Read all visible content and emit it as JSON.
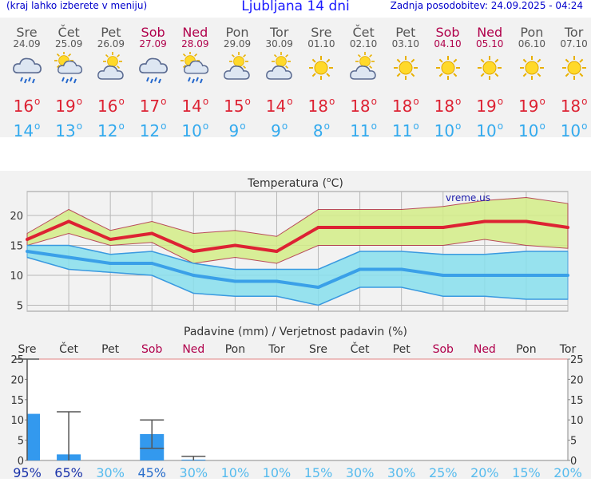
{
  "header": {
    "menu_hint": "(kraj lahko izberete v meniju)",
    "title": "Ljubljana 14 dni",
    "last_update": "Zadnja posodobitev: 24.09.2025 - 04:24"
  },
  "days": [
    {
      "name": "Sre",
      "date": "24.09",
      "weekend": false,
      "icon": "rain-cloud-icon",
      "tmax": "16",
      "tmin": "14"
    },
    {
      "name": "Čet",
      "date": "25.09",
      "weekend": false,
      "icon": "sun-cloud-rain-icon",
      "tmax": "19",
      "tmin": "13"
    },
    {
      "name": "Pet",
      "date": "26.09",
      "weekend": false,
      "icon": "sun-cloud-icon",
      "tmax": "16",
      "tmin": "12"
    },
    {
      "name": "Sob",
      "date": "27.09",
      "weekend": true,
      "icon": "rain-cloud-icon",
      "tmax": "17",
      "tmin": "12"
    },
    {
      "name": "Ned",
      "date": "28.09",
      "weekend": true,
      "icon": "sun-cloud-rain-icon",
      "tmax": "14",
      "tmin": "10"
    },
    {
      "name": "Pon",
      "date": "29.09",
      "weekend": false,
      "icon": "sun-cloud-icon",
      "tmax": "15",
      "tmin": "9"
    },
    {
      "name": "Tor",
      "date": "30.09",
      "weekend": false,
      "icon": "sun-cloud-icon",
      "tmax": "14",
      "tmin": "9"
    },
    {
      "name": "Sre",
      "date": "01.10",
      "weekend": false,
      "icon": "sun-icon",
      "tmax": "18",
      "tmin": "8"
    },
    {
      "name": "Čet",
      "date": "02.10",
      "weekend": false,
      "icon": "sun-cloud-icon",
      "tmax": "18",
      "tmin": "11"
    },
    {
      "name": "Pet",
      "date": "03.10",
      "weekend": false,
      "icon": "sun-icon",
      "tmax": "18",
      "tmin": "11"
    },
    {
      "name": "Sob",
      "date": "04.10",
      "weekend": true,
      "icon": "sun-icon",
      "tmax": "18",
      "tmin": "10"
    },
    {
      "name": "Ned",
      "date": "05.10",
      "weekend": true,
      "icon": "sun-icon",
      "tmax": "19",
      "tmin": "10"
    },
    {
      "name": "Pon",
      "date": "06.10",
      "weekend": false,
      "icon": "sun-icon",
      "tmax": "19",
      "tmin": "10"
    },
    {
      "name": "Tor",
      "date": "07.10",
      "weekend": false,
      "icon": "sun-icon",
      "tmax": "18",
      "tmin": "10"
    }
  ],
  "degree_symbol": "o",
  "colors": {
    "max_temp": "#dd2233",
    "min_temp": "#33aaee",
    "weekend": "#b0004b",
    "max_band": "#d4ee88",
    "min_band": "#88e0ee",
    "precip_bar": "#3399ee"
  },
  "chart_data": [
    {
      "type": "line",
      "title": "Temperatura (",
      "title_unit": "C)",
      "title_degree": "o",
      "watermark": "vreme.us",
      "ylim": [
        4,
        24
      ],
      "yticks": [
        5,
        10,
        15,
        20
      ],
      "series": [
        {
          "values": [
            16,
            19,
            16,
            17,
            14,
            15,
            14,
            18,
            18,
            18,
            18,
            19,
            19,
            18
          ]
        },
        {
          "values": [
            14,
            13,
            12,
            12,
            10,
            9,
            9,
            8,
            11,
            11,
            10,
            10,
            10,
            10
          ]
        }
      ],
      "max_band": {
        "upper": [
          17,
          21,
          17.5,
          19,
          17,
          17.5,
          16.5,
          21,
          21,
          21,
          21.5,
          22.5,
          23,
          22
        ],
        "lower": [
          15,
          17,
          15,
          15.5,
          12,
          13,
          12,
          15,
          15,
          15,
          15,
          16,
          15,
          14.5
        ]
      },
      "min_band": {
        "upper": [
          15,
          15,
          13.5,
          14,
          12,
          11,
          11,
          11,
          14,
          14,
          13.5,
          13.5,
          14,
          14
        ],
        "lower": [
          13,
          11,
          10.5,
          10,
          7,
          6.5,
          6.5,
          5,
          8,
          8,
          6.5,
          6.5,
          6,
          6
        ]
      }
    },
    {
      "type": "bar",
      "title": "Padavine (mm) / Verjetnost padavin (%)",
      "categories": [
        "Sre",
        "Čet",
        "Pet",
        "Sob",
        "Ned",
        "Pon",
        "Tor",
        "Sre",
        "Čet",
        "Pet",
        "Sob",
        "Ned",
        "Pon",
        "Tor"
      ],
      "weekend": [
        false,
        false,
        false,
        true,
        true,
        false,
        false,
        false,
        false,
        false,
        true,
        true,
        false,
        false
      ],
      "ylim": [
        0,
        25
      ],
      "yticks": [
        0,
        5,
        10,
        15,
        20,
        25
      ],
      "values": [
        11.5,
        1.5,
        0,
        6.5,
        0.2,
        0,
        0,
        0,
        0,
        0,
        0,
        0,
        0,
        0
      ],
      "error_high": [
        25,
        12,
        null,
        10,
        1,
        null,
        null,
        null,
        null,
        null,
        null,
        null,
        null,
        null
      ],
      "error_low": [
        0,
        0,
        null,
        3,
        0,
        null,
        null,
        null,
        null,
        null,
        null,
        null,
        null,
        null
      ],
      "probability": [
        "95%",
        "65%",
        "30%",
        "45%",
        "30%",
        "10%",
        "10%",
        "15%",
        "30%",
        "30%",
        "25%",
        "20%",
        "15%",
        "20%"
      ]
    }
  ]
}
